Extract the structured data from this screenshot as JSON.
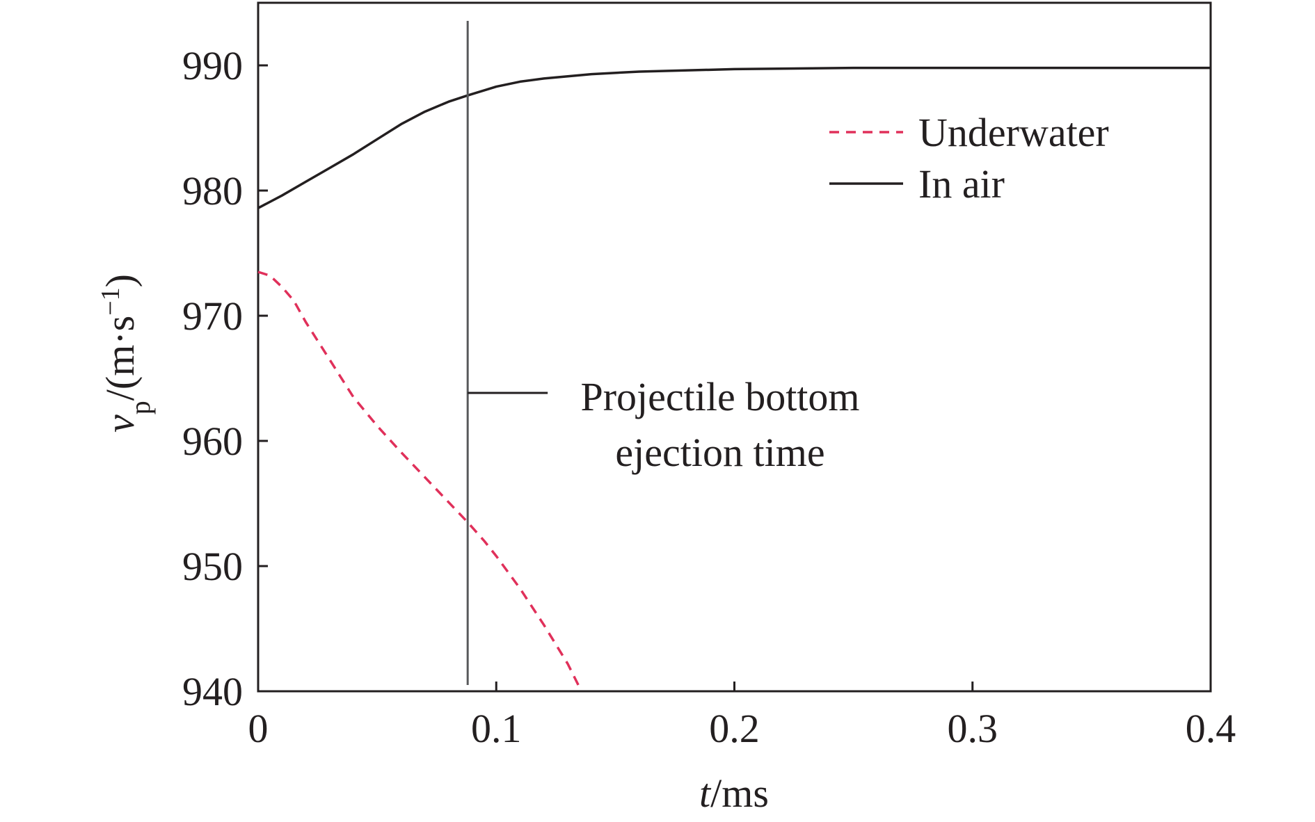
{
  "chart_data": {
    "type": "line",
    "xlabel": {
      "var": "t",
      "unit": "/ms"
    },
    "ylabel": {
      "var": "v",
      "sub": "p",
      "unit_pre": "/(m·s",
      "sup": "−1",
      "unit_post": ")"
    },
    "xlim": [
      0,
      0.4
    ],
    "ylim": [
      940,
      995
    ],
    "xticks": [
      0,
      0.1,
      0.2,
      0.3,
      0.4
    ],
    "xtick_labels": [
      "0",
      "0.1",
      "0.2",
      "0.3",
      "0.4"
    ],
    "yticks": [
      940,
      950,
      960,
      970,
      980,
      990
    ],
    "ytick_labels": [
      "940",
      "950",
      "960",
      "970",
      "980",
      "990"
    ],
    "grid": false,
    "legend_position": "top-right",
    "series": [
      {
        "name": "Underwater",
        "style": "dashed",
        "color": "#e0305a",
        "x": [
          0,
          0.005,
          0.01,
          0.015,
          0.02,
          0.03,
          0.04,
          0.05,
          0.06,
          0.07,
          0.08,
          0.088,
          0.095,
          0.1,
          0.11,
          0.12,
          0.13,
          0.135
        ],
        "y": [
          973.5,
          973.2,
          972.3,
          971.2,
          969.5,
          966.5,
          963.5,
          961.2,
          959.1,
          957.1,
          955.1,
          953.5,
          952.0,
          950.8,
          948.2,
          945.3,
          942.2,
          940.3
        ]
      },
      {
        "name": "In air",
        "style": "solid",
        "color": "#231f20",
        "x": [
          0,
          0.01,
          0.02,
          0.03,
          0.04,
          0.05,
          0.06,
          0.07,
          0.08,
          0.088,
          0.1,
          0.11,
          0.12,
          0.14,
          0.16,
          0.2,
          0.25,
          0.3,
          0.35,
          0.4
        ],
        "y": [
          978.6,
          979.6,
          980.7,
          981.8,
          982.9,
          984.1,
          985.3,
          986.3,
          987.1,
          987.6,
          988.3,
          988.7,
          988.95,
          989.3,
          989.5,
          989.7,
          989.8,
          989.8,
          989.8,
          989.8
        ]
      }
    ],
    "annotation": {
      "x": 0.088,
      "lines": [
        "Projectile bottom",
        "ejection time"
      ],
      "color": "#58595b"
    }
  }
}
